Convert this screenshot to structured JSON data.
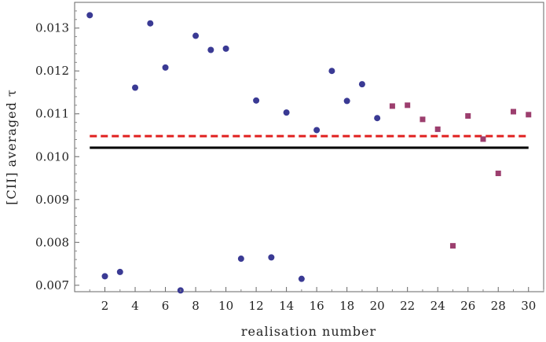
{
  "chart_data": {
    "type": "scatter",
    "xlabel": "realisation number",
    "ylabel": "[CII] averaged τ",
    "xlim": [
      0,
      31
    ],
    "ylim": [
      0.00685,
      0.0136
    ],
    "xticks": [
      2,
      4,
      6,
      8,
      10,
      12,
      14,
      16,
      18,
      20,
      22,
      24,
      26,
      28,
      30
    ],
    "xtick_labels": [
      "2",
      "4",
      "6",
      "8",
      "10",
      "12",
      "14",
      "16",
      "18",
      "20",
      "22",
      "24",
      "26",
      "28",
      "30"
    ],
    "yticks": [
      0.007,
      0.008,
      0.009,
      0.01,
      0.011,
      0.012,
      0.013
    ],
    "ytick_labels": [
      "0.007",
      "0.008",
      "0.009",
      "0.010",
      "0.011",
      "0.012",
      "0.013"
    ],
    "grid": false,
    "series": [
      {
        "marker": "circle",
        "color": "#3a3a94",
        "x": [
          1,
          2,
          3,
          4,
          5,
          6,
          7,
          8,
          9,
          10,
          11,
          12,
          13,
          14,
          15,
          16,
          17,
          18,
          19,
          20
        ],
        "y": [
          0.0133,
          0.00721,
          0.00731,
          0.01161,
          0.01311,
          0.01208,
          0.00688,
          0.01282,
          0.01249,
          0.01252,
          0.00762,
          0.01131,
          0.00765,
          0.01103,
          0.00715,
          0.01062,
          0.012,
          0.0113,
          0.01169,
          0.0109
        ]
      },
      {
        "marker": "square",
        "color": "#9c3e6e",
        "x": [
          21,
          22,
          23,
          24,
          25,
          26,
          27,
          28,
          29,
          30
        ],
        "y": [
          0.01118,
          0.0112,
          0.01087,
          0.01064,
          0.00792,
          0.01095,
          0.01041,
          0.00961,
          0.01105,
          0.01098
        ]
      }
    ],
    "reference_lines": [
      {
        "style": "solid",
        "color": "#000000",
        "y": 0.01021,
        "x_from": 1,
        "x_to": 30
      },
      {
        "style": "dashed",
        "color": "#e0201f",
        "y": 0.01048,
        "x_from": 1,
        "x_to": 30
      }
    ]
  }
}
